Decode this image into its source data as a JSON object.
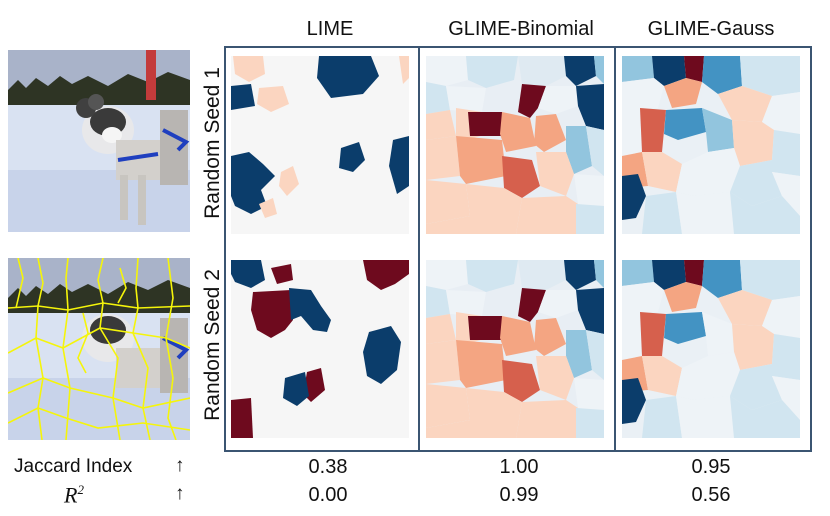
{
  "columns": [
    "LIME",
    "GLIME-Binomial",
    "GLIME-Gauss"
  ],
  "rows": [
    "Random Seed 1",
    "Random Seed 2"
  ],
  "metrics": [
    {
      "label": "Jaccard Index",
      "arrow": "↑",
      "values": [
        "0.38",
        "1.00",
        "0.95"
      ]
    },
    {
      "label": "R",
      "sup": "2",
      "arrow": "↑",
      "values": [
        "0.00",
        "0.99",
        "0.56"
      ]
    }
  ],
  "colors": {
    "dark_red": "#6e0a1e",
    "red": "#d6604d",
    "light_red": "#f4a582",
    "pale_red": "#fbd5c0",
    "neutral": "#f6f6f6",
    "pale_blue": "#d1e5f0",
    "light_blue": "#92c5de",
    "blue": "#4393c3",
    "dark_blue": "#0b3d6b",
    "frame": "#3b5572",
    "superpixel_boundary": "#f5f50a"
  }
}
